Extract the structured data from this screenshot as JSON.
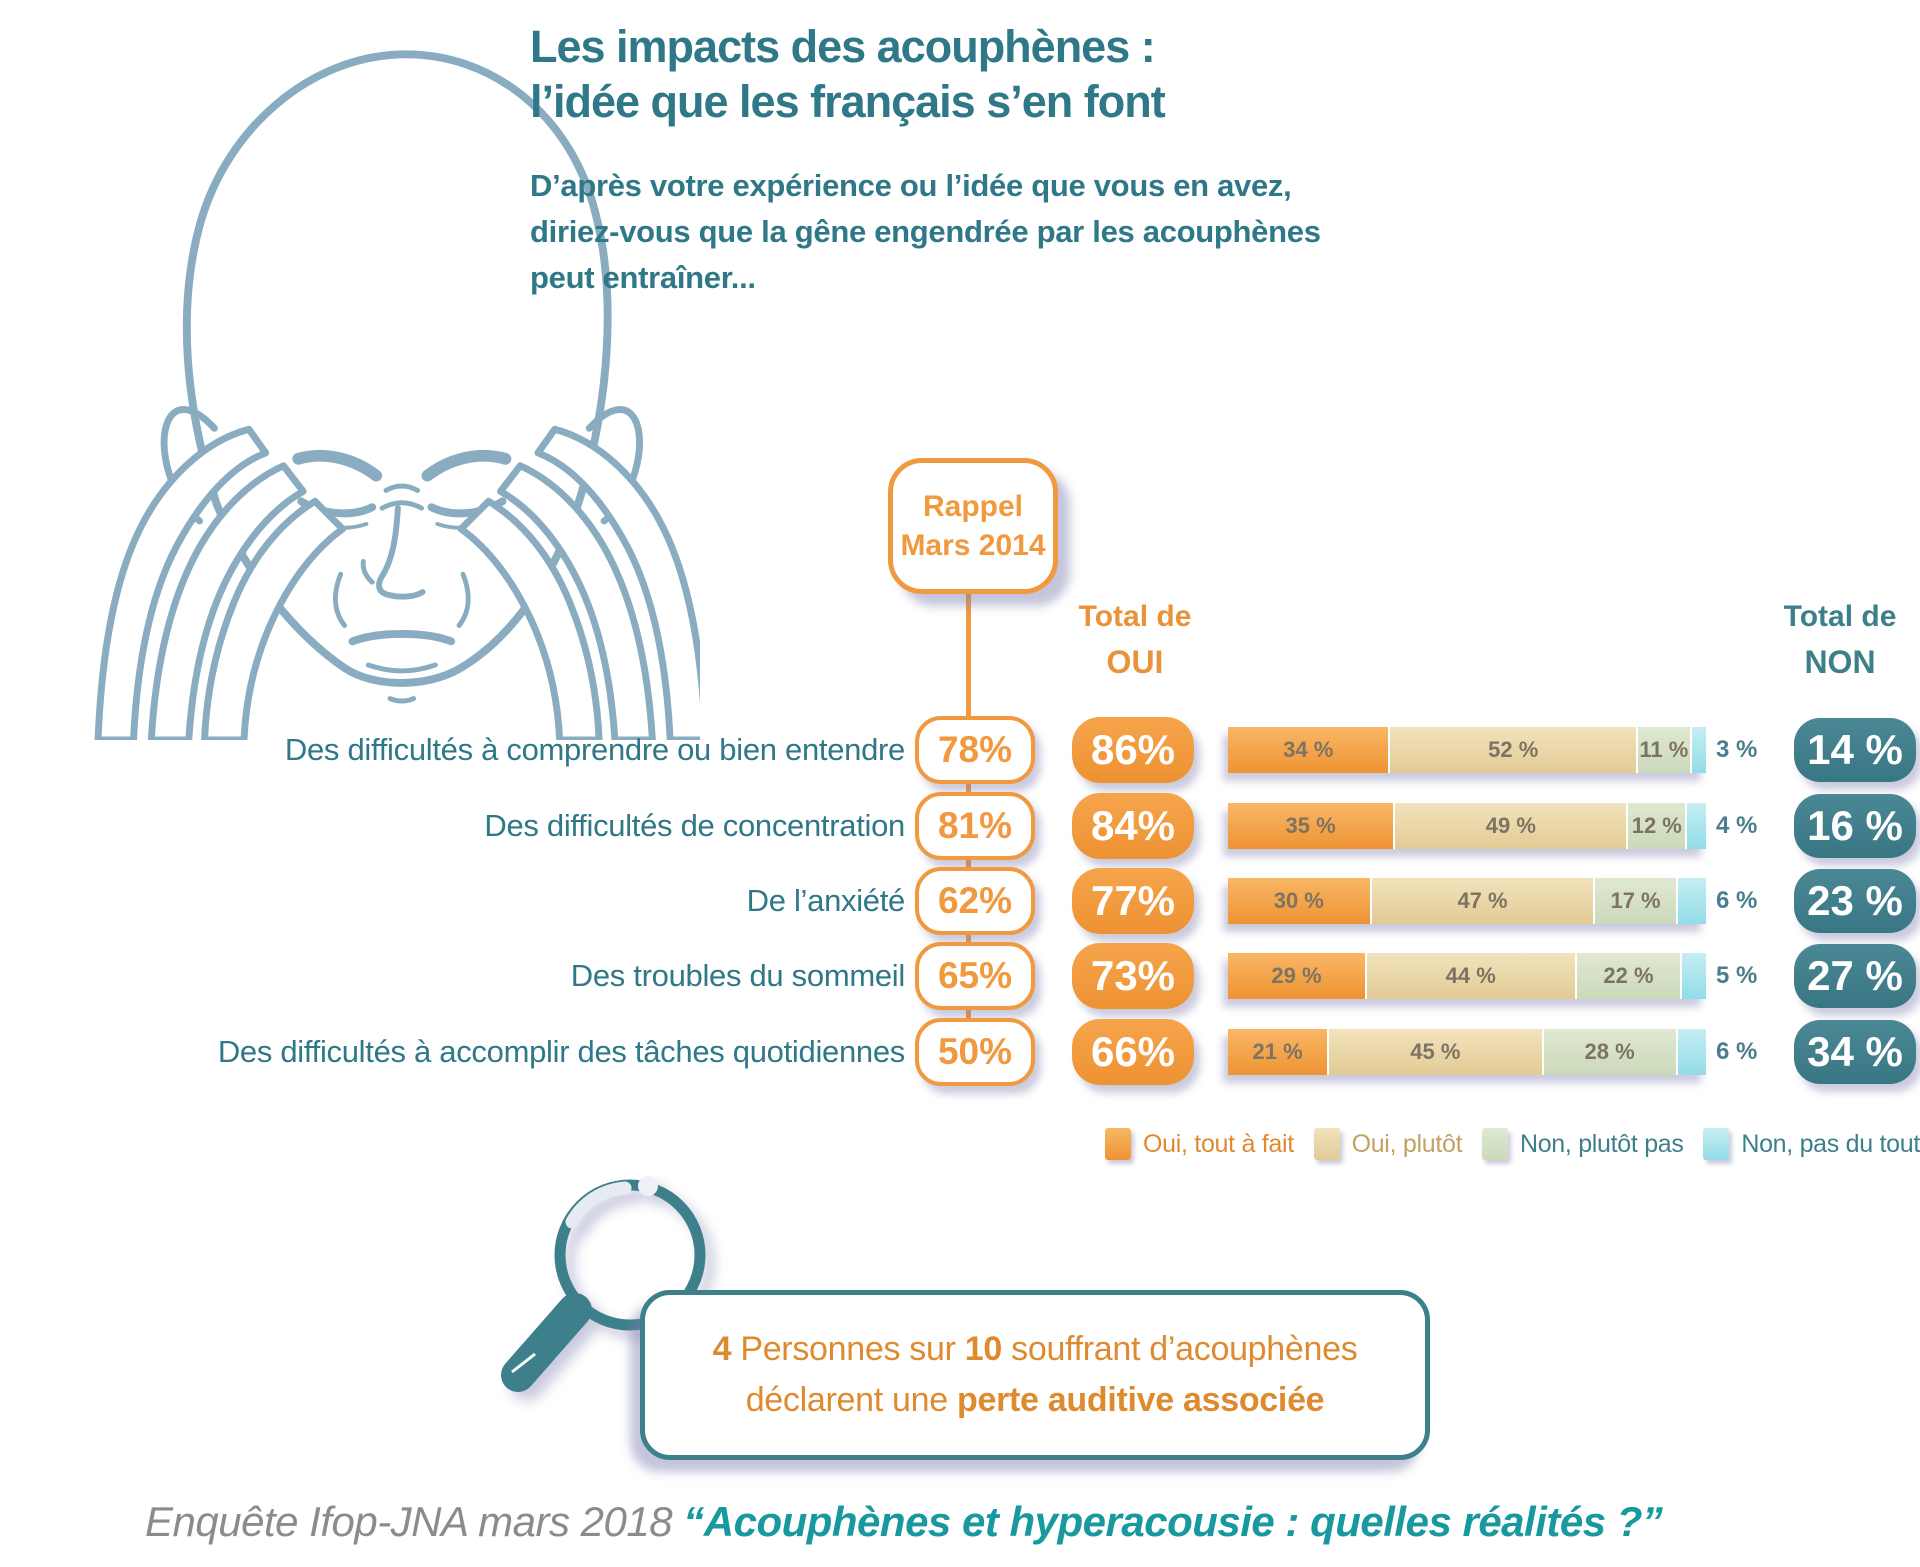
{
  "title": {
    "line1": "Les impacts des acouphènes :",
    "line2": "l’idée que les français s’en font"
  },
  "subtitle": {
    "line1": "D’après votre expérience ou l’idée que vous en avez,",
    "line2": "diriez-vous que la gêne engendrée par les acouphènes",
    "line3": "peut entraîner..."
  },
  "rappel_badge": {
    "line1": "Rappel",
    "line2": "Mars 2014"
  },
  "columns": {
    "oui": {
      "line1": "Total de",
      "line2": "OUI"
    },
    "non": {
      "line1": "Total de",
      "line2": "NON"
    }
  },
  "chart_data": {
    "type": "bar",
    "orientation": "horizontal-stacked",
    "unit": "%",
    "xlim": [
      0,
      100
    ],
    "categories": [
      "Des difficultés à comprendre ou bien entendre",
      "Des difficultés de concentration",
      "De l’anxiété",
      "Des troubles du sommeil",
      "Des difficultés à accomplir des tâches quotidiennes"
    ],
    "series": [
      {
        "name": "Rappel Mars 2014",
        "values": [
          78,
          81,
          62,
          65,
          50
        ]
      },
      {
        "name": "Total de OUI",
        "values": [
          86,
          84,
          77,
          73,
          66
        ]
      },
      {
        "name": "Oui, tout à fait",
        "values": [
          34,
          35,
          30,
          29,
          21
        ]
      },
      {
        "name": "Oui, plutôt",
        "values": [
          52,
          49,
          47,
          44,
          45
        ]
      },
      {
        "name": "Non, plutôt pas",
        "values": [
          11,
          12,
          17,
          22,
          28
        ]
      },
      {
        "name": "Non, pas du tout",
        "values": [
          3,
          4,
          6,
          5,
          6
        ]
      },
      {
        "name": "Total de NON",
        "values": [
          14,
          16,
          23,
          27,
          34
        ]
      }
    ],
    "legend_position": "bottom",
    "rows": [
      {
        "label": "Des difficultés à comprendre ou bien entendre",
        "rappel": "78%",
        "oui": "86%",
        "segments": [
          {
            "v": 34,
            "label": "34 %"
          },
          {
            "v": 52,
            "label": "52 %"
          },
          {
            "v": 11,
            "label": "11 %"
          },
          {
            "v": 3,
            "label": ""
          }
        ],
        "outside": "3 %",
        "non": "14 %"
      },
      {
        "label": "Des difficultés de concentration",
        "rappel": "81%",
        "oui": "84%",
        "segments": [
          {
            "v": 35,
            "label": "35 %"
          },
          {
            "v": 49,
            "label": "49 %"
          },
          {
            "v": 12,
            "label": "12 %"
          },
          {
            "v": 4,
            "label": ""
          }
        ],
        "outside": "4 %",
        "non": "16 %"
      },
      {
        "label": "De l’anxiété",
        "rappel": "62%",
        "oui": "77%",
        "segments": [
          {
            "v": 30,
            "label": "30 %"
          },
          {
            "v": 47,
            "label": "47 %"
          },
          {
            "v": 17,
            "label": "17 %"
          },
          {
            "v": 6,
            "label": ""
          }
        ],
        "outside": "6 %",
        "non": "23 %"
      },
      {
        "label": "Des troubles du sommeil",
        "rappel": "65%",
        "oui": "73%",
        "segments": [
          {
            "v": 29,
            "label": "29 %"
          },
          {
            "v": 44,
            "label": "44 %"
          },
          {
            "v": 22,
            "label": "22 %"
          },
          {
            "v": 5,
            "label": ""
          }
        ],
        "outside": "5 %",
        "non": "27 %"
      },
      {
        "label": "Des difficultés à accomplir des tâches quotidiennes",
        "rappel": "50%",
        "oui": "66%",
        "segments": [
          {
            "v": 21,
            "label": "21 %"
          },
          {
            "v": 45,
            "label": "45 %"
          },
          {
            "v": 28,
            "label": "28 %"
          },
          {
            "v": 6,
            "label": ""
          }
        ],
        "outside": "6 %",
        "non": "34 %"
      }
    ]
  },
  "legend": {
    "items": [
      {
        "label": "Oui, tout à fait",
        "color": "#EE9333"
      },
      {
        "label": "Oui, plutôt",
        "color": "#E2CA94"
      },
      {
        "label": "Non, plutôt pas",
        "color": "#CBD9BA"
      },
      {
        "label": "Non, pas du tout",
        "color": "#92DCE7"
      }
    ]
  },
  "callout": {
    "p1": "4",
    "p2": " Personnes sur ",
    "p3": "10",
    "p4": " souffrant d’acouphènes",
    "line2a": "déclarent une ",
    "line2b": "perte auditive associée"
  },
  "footer": {
    "source": "Enquête Ifop-JNA mars 2018 ",
    "quote": "“Acouphènes et hyperacousie : quelles réalités ?”"
  },
  "colors": {
    "teal": "#2F7888",
    "teal_dark": "#3E7F8C",
    "orange": "#F0993E",
    "quote_teal": "#18989F",
    "shadow": "#7C7CB0"
  }
}
